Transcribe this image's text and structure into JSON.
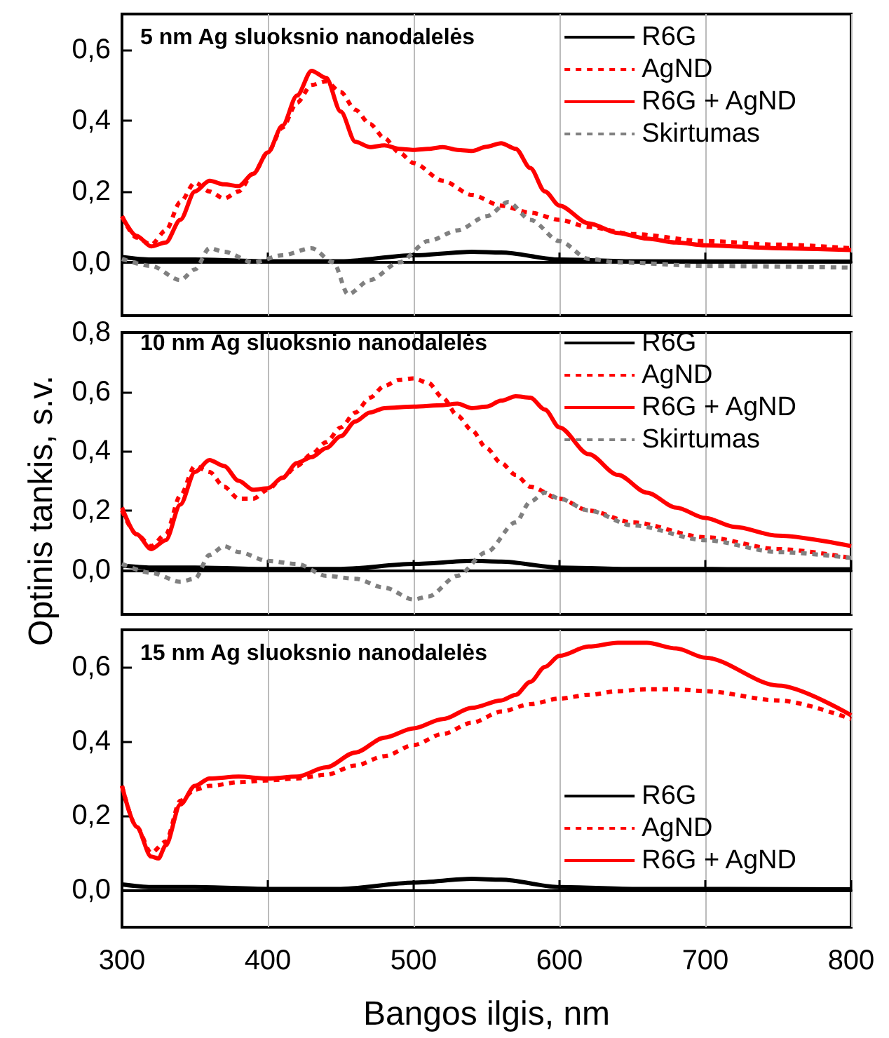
{
  "chart_data": [
    {
      "type": "line",
      "title": "5 nm Ag sluoksnio nanodalelės",
      "xlim": [
        300,
        800
      ],
      "xticks": [
        300,
        400,
        500,
        600,
        700,
        800
      ],
      "ylim": [
        -0.15,
        0.7
      ],
      "yticks": [
        {
          "value": 0,
          "label": "0,0"
        },
        {
          "value": 0.2,
          "label": "0,2"
        },
        {
          "value": 0.4,
          "label": "0,4"
        },
        {
          "value": 0.6,
          "label": "0,6"
        }
      ],
      "grid": "x",
      "legend": "top right",
      "tick_labels": "y",
      "marker": "none",
      "series": [
        {
          "name": "R6G",
          "color": "#000000",
          "line_style": "solid",
          "x": [
            300,
            320,
            350,
            400,
            450,
            500,
            540,
            560,
            600,
            650,
            800
          ],
          "values": [
            0.015,
            0.008,
            0.008,
            0.003,
            0.003,
            0.02,
            0.03,
            0.028,
            0.008,
            0.003,
            0.002
          ]
        },
        {
          "name": "AgND",
          "color": "#ff0000",
          "line_style": "dotted",
          "x": [
            300,
            310,
            320,
            330,
            340,
            350,
            360,
            370,
            380,
            390,
            400,
            410,
            420,
            430,
            440,
            450,
            460,
            470,
            480,
            490,
            500,
            520,
            540,
            560,
            580,
            600,
            620,
            650,
            700,
            750,
            800
          ],
          "values": [
            0.13,
            0.07,
            0.05,
            0.09,
            0.17,
            0.225,
            0.2,
            0.18,
            0.2,
            0.25,
            0.31,
            0.38,
            0.45,
            0.5,
            0.51,
            0.48,
            0.43,
            0.39,
            0.35,
            0.31,
            0.28,
            0.23,
            0.19,
            0.16,
            0.14,
            0.12,
            0.1,
            0.08,
            0.06,
            0.05,
            0.04
          ]
        },
        {
          "name": "R6G + AgND",
          "color": "#ff0000",
          "line_style": "solid",
          "x": [
            300,
            310,
            320,
            330,
            340,
            350,
            360,
            370,
            380,
            390,
            400,
            410,
            420,
            430,
            440,
            450,
            460,
            470,
            480,
            490,
            500,
            510,
            520,
            530,
            540,
            550,
            560,
            570,
            580,
            590,
            600,
            620,
            640,
            660,
            680,
            700,
            750,
            800
          ],
          "values": [
            0.13,
            0.075,
            0.045,
            0.056,
            0.12,
            0.2,
            0.23,
            0.22,
            0.215,
            0.25,
            0.31,
            0.385,
            0.47,
            0.54,
            0.52,
            0.425,
            0.34,
            0.325,
            0.33,
            0.32,
            0.317,
            0.32,
            0.325,
            0.317,
            0.314,
            0.326,
            0.336,
            0.32,
            0.266,
            0.2,
            0.16,
            0.11,
            0.083,
            0.067,
            0.056,
            0.048,
            0.04,
            0.035
          ]
        },
        {
          "name": "Skirtumas",
          "color": "#808080",
          "line_style": "dotted",
          "x": [
            300,
            320,
            340,
            350,
            360,
            370,
            390,
            410,
            430,
            445,
            455,
            470,
            490,
            510,
            530,
            550,
            565,
            580,
            600,
            620,
            640,
            700,
            800
          ],
          "values": [
            0.01,
            -0.01,
            -0.05,
            -0.02,
            0.04,
            0.03,
            0.0,
            0.02,
            0.04,
            0.0,
            -0.09,
            -0.05,
            0.0,
            0.06,
            0.09,
            0.13,
            0.17,
            0.12,
            0.06,
            0.01,
            0.0,
            -0.01,
            -0.015
          ]
        }
      ]
    },
    {
      "type": "line",
      "title": "10 nm Ag sluoksnio nanodalelės",
      "ylabel": "Optinis tankis, s.v.",
      "xlim": [
        300,
        800
      ],
      "xticks": [
        300,
        400,
        500,
        600,
        700,
        800
      ],
      "ylim": [
        -0.15,
        0.8
      ],
      "yticks": [
        {
          "value": 0,
          "label": "0,0"
        },
        {
          "value": 0.2,
          "label": "0,2"
        },
        {
          "value": 0.4,
          "label": "0,4"
        },
        {
          "value": 0.6,
          "label": "0,6"
        },
        {
          "value": 0.8,
          "label": "0,8"
        }
      ],
      "grid": "x",
      "legend": "top right",
      "tick_labels": "y",
      "marker": "none",
      "series": [
        {
          "name": "R6G",
          "color": "#000000",
          "line_style": "solid",
          "x": [
            300,
            320,
            350,
            400,
            450,
            500,
            540,
            560,
            600,
            650,
            800
          ],
          "values": [
            0.015,
            0.008,
            0.008,
            0.003,
            0.003,
            0.02,
            0.03,
            0.028,
            0.008,
            0.003,
            0.002
          ]
        },
        {
          "name": "AgND",
          "color": "#ff0000",
          "line_style": "dotted",
          "x": [
            300,
            310,
            320,
            330,
            340,
            350,
            360,
            370,
            380,
            390,
            400,
            410,
            420,
            430,
            440,
            450,
            460,
            470,
            480,
            490,
            500,
            510,
            520,
            530,
            540,
            550,
            560,
            570,
            580,
            600,
            620,
            650,
            700,
            750,
            800
          ],
          "values": [
            0.2,
            0.12,
            0.08,
            0.12,
            0.25,
            0.35,
            0.33,
            0.28,
            0.24,
            0.24,
            0.27,
            0.31,
            0.35,
            0.39,
            0.43,
            0.48,
            0.53,
            0.58,
            0.62,
            0.64,
            0.645,
            0.63,
            0.58,
            0.52,
            0.47,
            0.41,
            0.36,
            0.32,
            0.28,
            0.24,
            0.2,
            0.16,
            0.11,
            0.07,
            0.04
          ]
        },
        {
          "name": "R6G + AgND",
          "color": "#ff0000",
          "line_style": "solid",
          "x": [
            300,
            310,
            320,
            330,
            340,
            350,
            360,
            370,
            380,
            390,
            400,
            410,
            420,
            430,
            440,
            450,
            460,
            470,
            480,
            500,
            520,
            530,
            540,
            550,
            560,
            570,
            580,
            590,
            600,
            620,
            640,
            660,
            680,
            700,
            720,
            750,
            800
          ],
          "values": [
            0.21,
            0.12,
            0.07,
            0.1,
            0.22,
            0.33,
            0.37,
            0.35,
            0.3,
            0.27,
            0.275,
            0.31,
            0.36,
            0.38,
            0.41,
            0.45,
            0.5,
            0.53,
            0.545,
            0.55,
            0.555,
            0.56,
            0.545,
            0.55,
            0.57,
            0.585,
            0.58,
            0.54,
            0.48,
            0.39,
            0.32,
            0.26,
            0.21,
            0.175,
            0.145,
            0.115,
            0.08
          ]
        },
        {
          "name": "Skirtumas",
          "color": "#808080",
          "line_style": "dotted",
          "x": [
            300,
            320,
            340,
            350,
            360,
            370,
            380,
            400,
            420,
            440,
            460,
            480,
            500,
            510,
            530,
            550,
            570,
            580,
            590,
            600,
            620,
            650,
            700,
            750,
            800
          ],
          "values": [
            0.02,
            -0.01,
            -0.04,
            -0.03,
            0.05,
            0.08,
            0.06,
            0.03,
            0.02,
            -0.02,
            -0.03,
            -0.06,
            -0.1,
            -0.09,
            -0.02,
            0.06,
            0.16,
            0.23,
            0.26,
            0.24,
            0.2,
            0.15,
            0.1,
            0.06,
            0.04
          ]
        }
      ]
    },
    {
      "type": "line",
      "title": "15 nm Ag sluoksnio nanodalelės",
      "xlabel": "Bangos ilgis, nm",
      "xlim": [
        300,
        800
      ],
      "xticks": [
        300,
        400,
        500,
        600,
        700,
        800
      ],
      "ylim": [
        -0.1,
        0.7
      ],
      "yticks": [
        {
          "value": 0,
          "label": "0,0"
        },
        {
          "value": 0.2,
          "label": "0,2"
        },
        {
          "value": 0.4,
          "label": "0,4"
        },
        {
          "value": 0.6,
          "label": "0,6"
        }
      ],
      "grid": "x",
      "legend": "bottom right",
      "marker": "none",
      "series": [
        {
          "name": "R6G",
          "color": "#000000",
          "line_style": "solid",
          "x": [
            300,
            320,
            350,
            400,
            450,
            500,
            540,
            560,
            600,
            650,
            800
          ],
          "values": [
            0.015,
            0.008,
            0.008,
            0.003,
            0.003,
            0.02,
            0.03,
            0.028,
            0.008,
            0.003,
            0.002
          ]
        },
        {
          "name": "AgND",
          "color": "#ff0000",
          "line_style": "dotted",
          "x": [
            300,
            310,
            320,
            330,
            340,
            350,
            360,
            380,
            400,
            420,
            440,
            460,
            480,
            500,
            520,
            540,
            560,
            580,
            600,
            620,
            640,
            660,
            680,
            700,
            750,
            800
          ],
          "values": [
            0.28,
            0.17,
            0.1,
            0.13,
            0.24,
            0.27,
            0.28,
            0.29,
            0.295,
            0.3,
            0.31,
            0.335,
            0.36,
            0.39,
            0.42,
            0.45,
            0.48,
            0.5,
            0.515,
            0.525,
            0.535,
            0.54,
            0.54,
            0.535,
            0.51,
            0.46
          ]
        },
        {
          "name": "R6G + AgND",
          "color": "#ff0000",
          "line_style": "solid",
          "x": [
            300,
            310,
            320,
            325,
            330,
            340,
            350,
            360,
            380,
            400,
            420,
            440,
            460,
            480,
            500,
            520,
            540,
            560,
            570,
            580,
            590,
            600,
            620,
            640,
            660,
            680,
            700,
            750,
            800
          ],
          "values": [
            0.28,
            0.17,
            0.09,
            0.085,
            0.12,
            0.23,
            0.28,
            0.3,
            0.305,
            0.3,
            0.305,
            0.33,
            0.37,
            0.41,
            0.435,
            0.46,
            0.49,
            0.51,
            0.525,
            0.56,
            0.6,
            0.63,
            0.655,
            0.665,
            0.665,
            0.65,
            0.625,
            0.55,
            0.47
          ]
        }
      ]
    }
  ]
}
